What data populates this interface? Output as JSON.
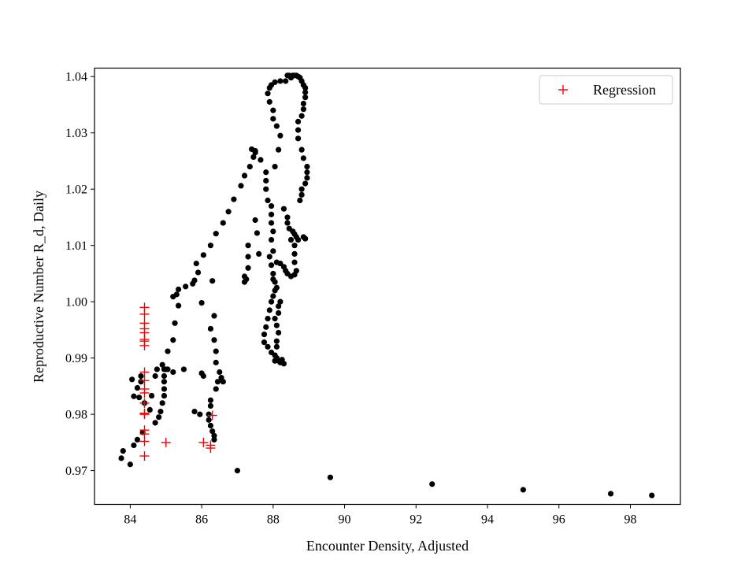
{
  "chart_data": {
    "type": "scatter",
    "title": "",
    "xlabel": "Encounter Density, Adjusted",
    "ylabel": "Reproductive Number R_d, Daily",
    "xlim": [
      83.0,
      99.4
    ],
    "ylim": [
      0.964,
      1.0415
    ],
    "xticks": [
      84,
      86,
      88,
      90,
      92,
      94,
      96,
      98
    ],
    "xtick_labels": [
      "84",
      "86",
      "88",
      "90",
      "92",
      "94",
      "96",
      "98"
    ],
    "yticks": [
      0.97,
      0.98,
      0.99,
      1.0,
      1.01,
      1.02,
      1.03,
      1.04
    ],
    "ytick_labels": [
      "0.97",
      "0.98",
      "0.99",
      "1.00",
      "1.01",
      "1.02",
      "1.03",
      "1.04"
    ],
    "grid": false,
    "legend": {
      "position": "top-right",
      "entries": [
        "Regression"
      ]
    },
    "series": [
      {
        "marker": "circle",
        "color": "#000000",
        "points": [
          [
            83.75,
            0.9722
          ],
          [
            83.8,
            0.9735
          ],
          [
            84.0,
            0.9711
          ],
          [
            84.1,
            0.9745
          ],
          [
            84.2,
            0.9755
          ],
          [
            84.35,
            0.9768
          ],
          [
            84.1,
            0.9832
          ],
          [
            84.2,
            0.9847
          ],
          [
            84.3,
            0.9858
          ],
          [
            84.05,
            0.9862
          ],
          [
            84.25,
            0.983
          ],
          [
            84.3,
            0.9868
          ],
          [
            84.4,
            0.982
          ],
          [
            84.55,
            0.9808
          ],
          [
            84.6,
            0.9833
          ],
          [
            84.7,
            0.9868
          ],
          [
            84.75,
            0.988
          ],
          [
            84.9,
            0.9888
          ],
          [
            84.95,
            0.988
          ],
          [
            84.7,
            0.9785
          ],
          [
            84.8,
            0.9795
          ],
          [
            84.85,
            0.9805
          ],
          [
            84.9,
            0.982
          ],
          [
            84.95,
            0.9833
          ],
          [
            84.95,
            0.9845
          ],
          [
            84.95,
            0.9858
          ],
          [
            84.95,
            0.9868
          ],
          [
            85.0,
            0.988
          ],
          [
            85.05,
            0.9912
          ],
          [
            85.2,
            0.9932
          ],
          [
            85.25,
            0.9962
          ],
          [
            85.35,
            0.9993
          ],
          [
            85.2,
            1.0009
          ],
          [
            85.3,
            1.0013
          ],
          [
            85.35,
            1.0022
          ],
          [
            85.55,
            1.0027
          ],
          [
            85.75,
            1.0032
          ],
          [
            85.8,
            1.0038
          ],
          [
            85.9,
            1.0052
          ],
          [
            85.85,
            1.0068
          ],
          [
            86.05,
            1.0083
          ],
          [
            86.25,
            1.01
          ],
          [
            86.4,
            1.0121
          ],
          [
            86.6,
            1.014
          ],
          [
            86.75,
            1.016
          ],
          [
            86.9,
            1.0182
          ],
          [
            87.1,
            1.0206
          ],
          [
            87.2,
            1.0224
          ],
          [
            87.35,
            1.024
          ],
          [
            87.45,
            1.0257
          ],
          [
            87.5,
            1.0268
          ],
          [
            87.4,
            1.0271
          ],
          [
            87.5,
            1.0265
          ],
          [
            87.65,
            1.0252
          ],
          [
            87.8,
            1.023
          ],
          [
            87.8,
            1.0215
          ],
          [
            87.8,
            1.02
          ],
          [
            87.85,
            1.018
          ],
          [
            87.95,
            1.017
          ],
          [
            87.95,
            1.0155
          ],
          [
            87.95,
            1.014
          ],
          [
            88.0,
            1.0125
          ],
          [
            87.95,
            1.011
          ],
          [
            88.0,
            1.009
          ],
          [
            87.9,
            1.008
          ],
          [
            87.95,
            1.0065
          ],
          [
            87.3,
            1.01
          ],
          [
            87.3,
            1.008
          ],
          [
            87.3,
            1.006
          ],
          [
            87.25,
            1.004
          ],
          [
            87.2,
            1.0035
          ],
          [
            87.2,
            1.0045
          ],
          [
            87.5,
            1.0145
          ],
          [
            87.55,
            1.0122
          ],
          [
            87.6,
            1.0085
          ],
          [
            88.05,
            1.024
          ],
          [
            88.15,
            1.027
          ],
          [
            88.2,
            1.0295
          ],
          [
            88.1,
            1.0312
          ],
          [
            88.0,
            1.0325
          ],
          [
            88.0,
            1.034
          ],
          [
            87.9,
            1.0355
          ],
          [
            87.85,
            1.037
          ],
          [
            87.9,
            1.038
          ],
          [
            87.95,
            1.0385
          ],
          [
            88.05,
            1.039
          ],
          [
            88.2,
            1.0392
          ],
          [
            88.35,
            1.0392
          ],
          [
            88.4,
            1.0402
          ],
          [
            88.45,
            1.0402
          ],
          [
            88.5,
            1.0398
          ],
          [
            88.55,
            1.0402
          ],
          [
            88.6,
            1.0402
          ],
          [
            88.65,
            1.0402
          ],
          [
            88.7,
            1.04
          ],
          [
            88.75,
            1.0398
          ],
          [
            88.8,
            1.0392
          ],
          [
            88.85,
            1.0385
          ],
          [
            88.9,
            1.038
          ],
          [
            88.9,
            1.0372
          ],
          [
            88.9,
            1.0363
          ],
          [
            88.85,
            1.0352
          ],
          [
            88.85,
            1.0342
          ],
          [
            88.8,
            1.033
          ],
          [
            88.7,
            1.032
          ],
          [
            88.7,
            1.0305
          ],
          [
            88.7,
            1.029
          ],
          [
            88.8,
            1.027
          ],
          [
            88.85,
            1.0255
          ],
          [
            88.95,
            1.024
          ],
          [
            88.95,
            1.023
          ],
          [
            88.95,
            1.022
          ],
          [
            88.9,
            1.021
          ],
          [
            88.8,
            1.02
          ],
          [
            88.8,
            1.019
          ],
          [
            88.75,
            1.018
          ],
          [
            88.3,
            1.0165
          ],
          [
            88.4,
            1.015
          ],
          [
            88.4,
            1.014
          ],
          [
            88.45,
            1.013
          ],
          [
            88.55,
            1.0125
          ],
          [
            88.6,
            1.012
          ],
          [
            88.65,
            1.0115
          ],
          [
            88.7,
            1.011
          ],
          [
            88.85,
            1.0115
          ],
          [
            88.9,
            1.0112
          ],
          [
            88.5,
            1.011
          ],
          [
            88.6,
            1.01
          ],
          [
            88.6,
            1.0085
          ],
          [
            88.6,
            1.007
          ],
          [
            88.65,
            1.0055
          ],
          [
            88.6,
            1.0048
          ],
          [
            88.5,
            1.0045
          ],
          [
            88.4,
            1.005
          ],
          [
            88.35,
            1.0055
          ],
          [
            88.3,
            1.0062
          ],
          [
            88.2,
            1.0068
          ],
          [
            88.1,
            1.007
          ],
          [
            88.0,
            1.005
          ],
          [
            88.0,
            1.004
          ],
          [
            88.05,
            1.0035
          ],
          [
            88.1,
            1.0025
          ],
          [
            88.05,
            1.002
          ],
          [
            88.0,
            1.001
          ],
          [
            87.95,
            1.0
          ],
          [
            87.9,
            0.9985
          ],
          [
            87.85,
            0.997
          ],
          [
            87.8,
            0.9955
          ],
          [
            87.75,
            0.9942
          ],
          [
            87.75,
            0.9928
          ],
          [
            87.85,
            0.992
          ],
          [
            87.95,
            0.991
          ],
          [
            88.05,
            0.9905
          ],
          [
            88.1,
            0.99
          ],
          [
            88.15,
            0.9895
          ],
          [
            88.2,
            0.9892
          ],
          [
            88.3,
            0.989
          ],
          [
            88.25,
            0.9897
          ],
          [
            88.05,
            0.9895
          ],
          [
            88.1,
            0.992
          ],
          [
            88.1,
            0.993
          ],
          [
            88.15,
            0.9945
          ],
          [
            88.1,
            0.9958
          ],
          [
            88.05,
            0.997
          ],
          [
            88.15,
            0.998
          ],
          [
            88.15,
            0.9992
          ],
          [
            88.2,
            1.0
          ],
          [
            86.3,
            1.0037
          ],
          [
            86.0,
            0.9998
          ],
          [
            86.35,
            0.9975
          ],
          [
            86.25,
            0.9952
          ],
          [
            86.35,
            0.9932
          ],
          [
            86.4,
            0.9912
          ],
          [
            86.4,
            0.9892
          ],
          [
            86.5,
            0.9875
          ],
          [
            86.55,
            0.9865
          ],
          [
            86.6,
            0.9858
          ],
          [
            86.45,
            0.9858
          ],
          [
            86.4,
            0.9845
          ],
          [
            86.25,
            0.9825
          ],
          [
            86.25,
            0.9815
          ],
          [
            86.2,
            0.98
          ],
          [
            86.2,
            0.979
          ],
          [
            86.25,
            0.978
          ],
          [
            86.3,
            0.977
          ],
          [
            86.35,
            0.9762
          ],
          [
            86.35,
            0.9755
          ],
          [
            86.0,
            0.9873
          ],
          [
            86.05,
            0.9868
          ],
          [
            85.95,
            0.98
          ],
          [
            85.8,
            0.9805
          ],
          [
            85.5,
            0.988
          ],
          [
            85.2,
            0.9875
          ],
          [
            85.05,
            0.988
          ],
          [
            87.0,
            0.97
          ],
          [
            89.6,
            0.9688
          ],
          [
            92.45,
            0.9676
          ],
          [
            95.0,
            0.9666
          ],
          [
            97.45,
            0.9659
          ],
          [
            98.6,
            0.9656
          ]
        ]
      },
      {
        "name": "Regression",
        "marker": "plus",
        "color": "#ff0000",
        "points": [
          [
            84.4,
            0.999
          ],
          [
            84.4,
            0.9978
          ],
          [
            84.4,
            0.9962
          ],
          [
            84.4,
            0.9952
          ],
          [
            84.4,
            0.9945
          ],
          [
            84.4,
            0.9933
          ],
          [
            84.4,
            0.993
          ],
          [
            84.4,
            0.9922
          ],
          [
            84.4,
            0.9875
          ],
          [
            84.4,
            0.986
          ],
          [
            84.4,
            0.9845
          ],
          [
            84.4,
            0.9838
          ],
          [
            84.4,
            0.982
          ],
          [
            84.4,
            0.9802
          ],
          [
            84.4,
            0.98
          ],
          [
            84.4,
            0.9772
          ],
          [
            84.4,
            0.9765
          ],
          [
            84.4,
            0.9752
          ],
          [
            84.4,
            0.9726
          ],
          [
            85.0,
            0.975
          ],
          [
            86.05,
            0.975
          ],
          [
            86.25,
            0.9745
          ],
          [
            86.25,
            0.974
          ],
          [
            86.3,
            0.9798
          ]
        ]
      }
    ]
  }
}
